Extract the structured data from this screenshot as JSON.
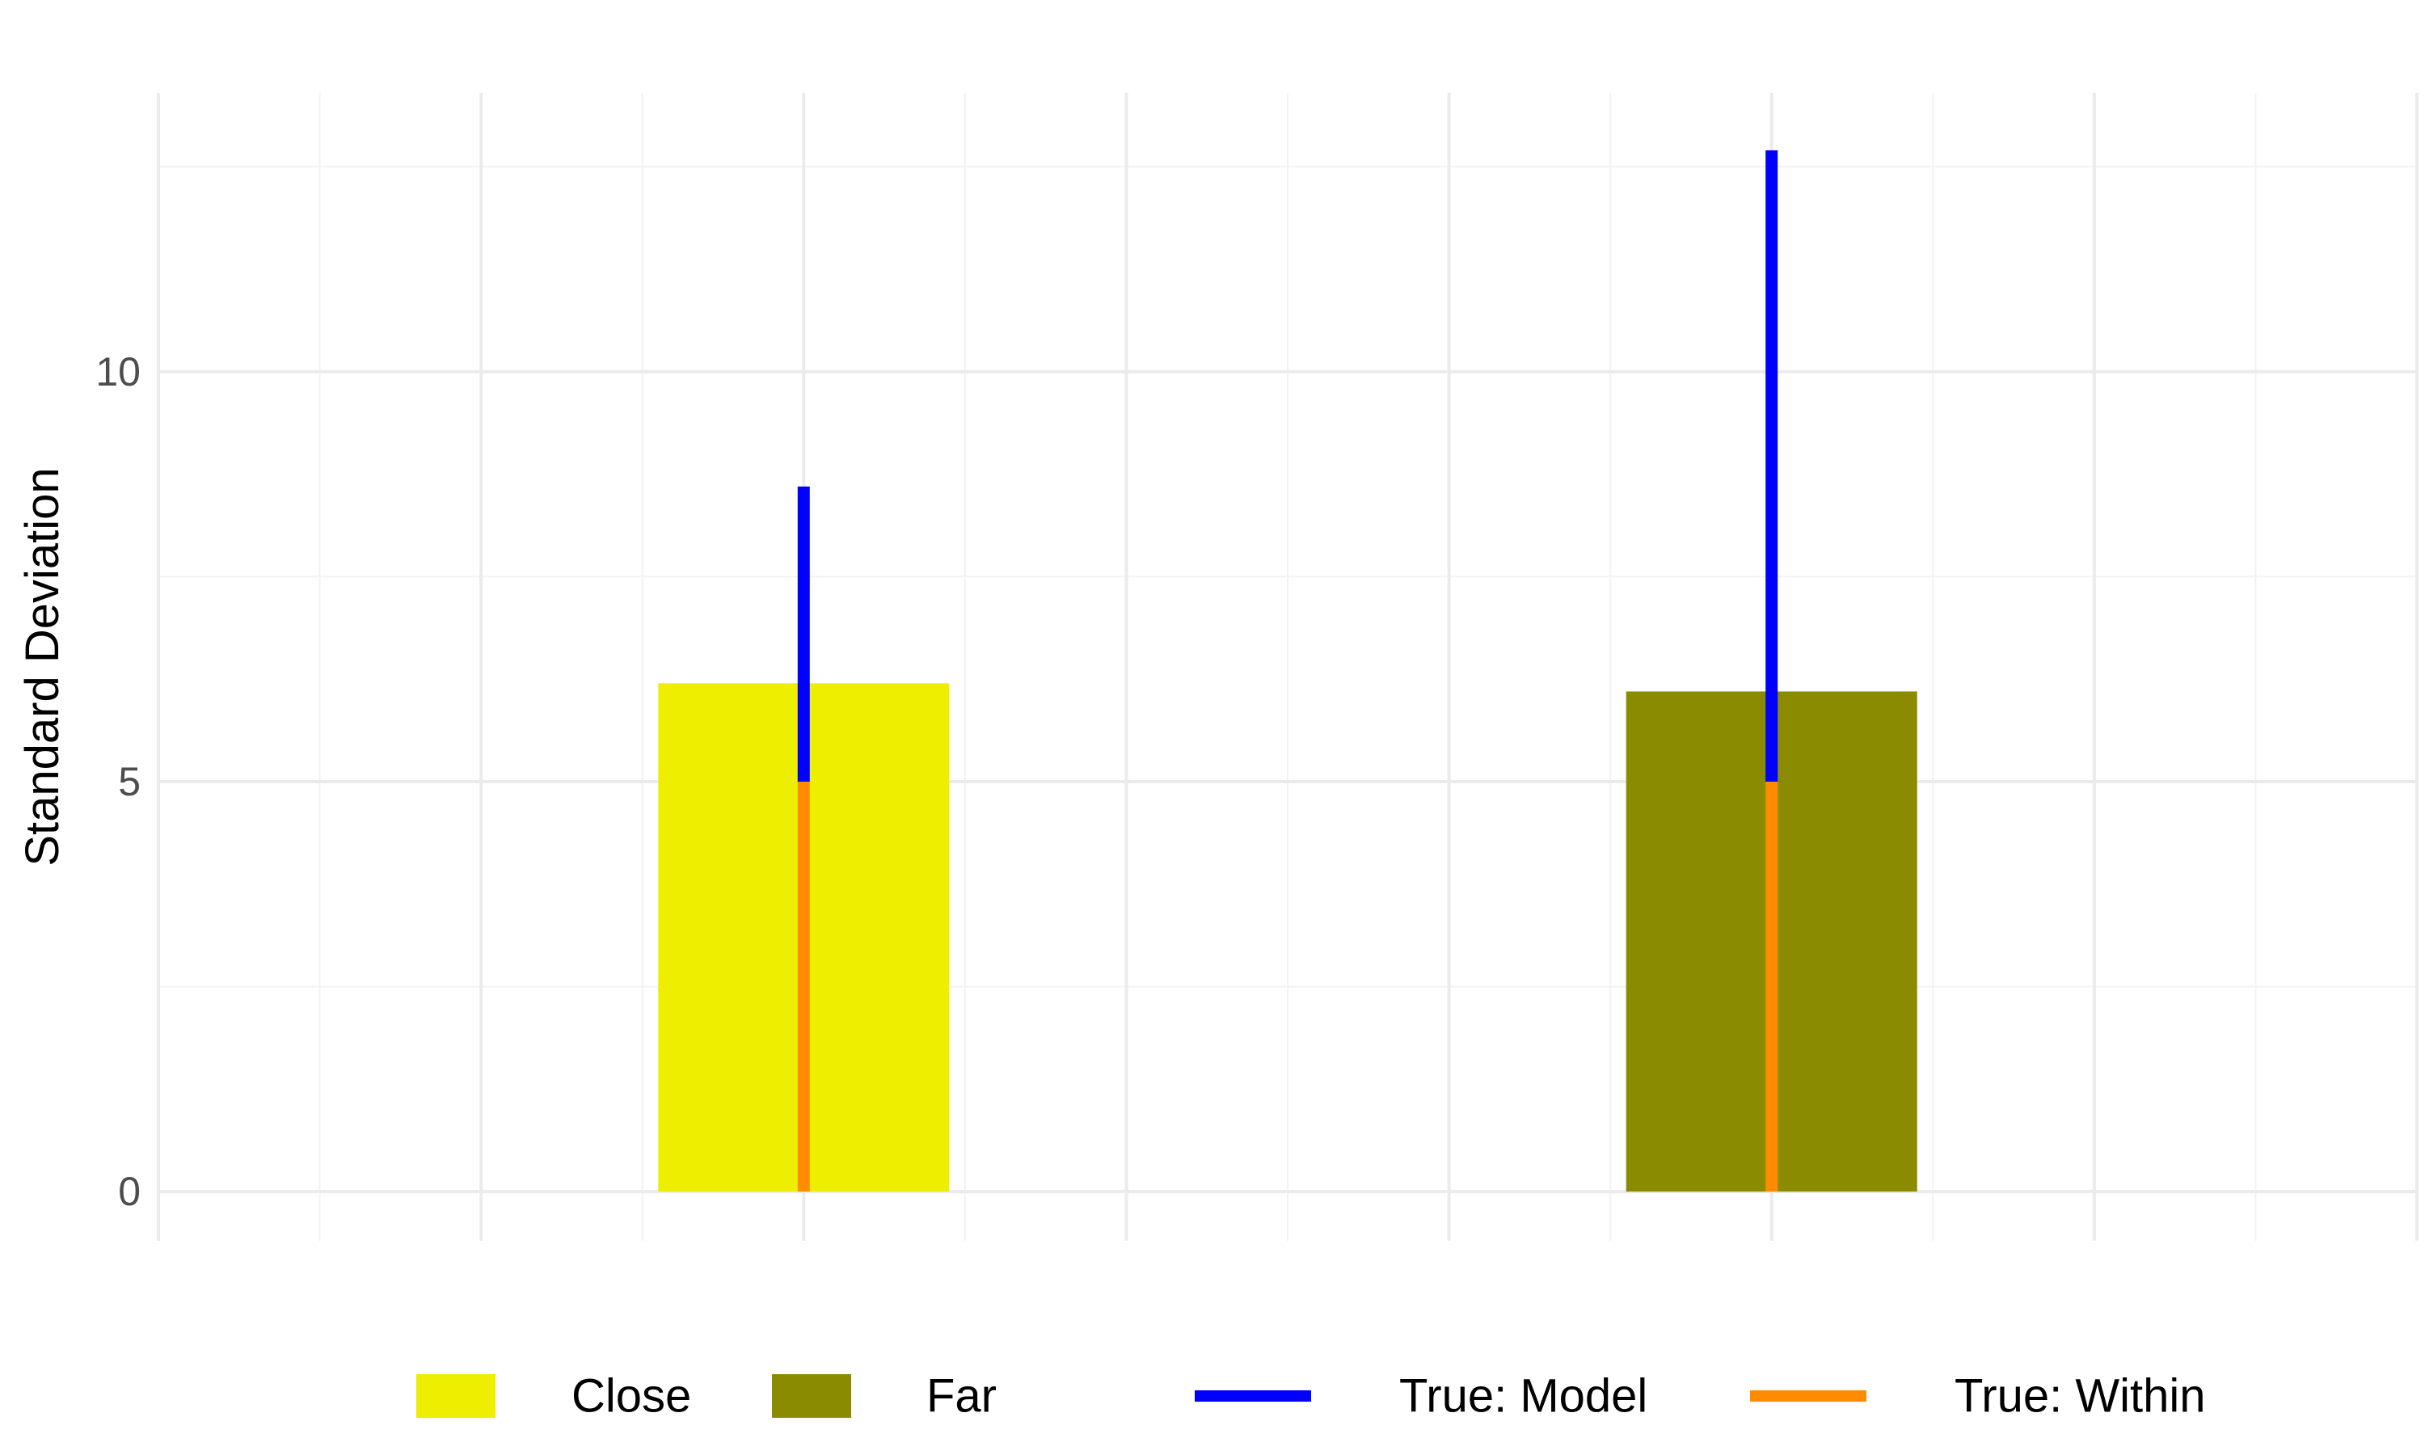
{
  "chart_data": {
    "type": "bar",
    "ylabel": "Standard Deviation",
    "xlabel": "",
    "ylim": [
      -0.6,
      13.4
    ],
    "xlim": [
      0.5,
      4.0
    ],
    "yticks": [
      0,
      5,
      10
    ],
    "grid": true,
    "legend_position": "bottom",
    "bars": [
      {
        "name": "Close",
        "x": 1.5,
        "value": 6.2,
        "color": "#EEEE00"
      },
      {
        "name": "Far",
        "x": 3.0,
        "value": 6.1,
        "color": "#8B8B00"
      }
    ],
    "lines": [
      {
        "name": "True: Model",
        "color": "#0000FF",
        "segments": [
          {
            "x": 1.5,
            "y0": 5.0,
            "y1": 8.6
          },
          {
            "x": 3.0,
            "y0": 5.0,
            "y1": 12.7
          }
        ]
      },
      {
        "name": "True: Within",
        "color": "#FF8C00",
        "segments": [
          {
            "x": 1.5,
            "y0": 0,
            "y1": 5.0
          },
          {
            "x": 3.0,
            "y0": 0,
            "y1": 5.0
          }
        ]
      }
    ],
    "legend": [
      {
        "label": "Close",
        "kind": "fill",
        "color": "#EEEE00"
      },
      {
        "label": "Far",
        "kind": "fill",
        "color": "#8B8B00"
      },
      {
        "label": "True: Model",
        "kind": "line",
        "color": "#0000FF"
      },
      {
        "label": "True: Within",
        "kind": "line",
        "color": "#FF8C00"
      }
    ]
  }
}
